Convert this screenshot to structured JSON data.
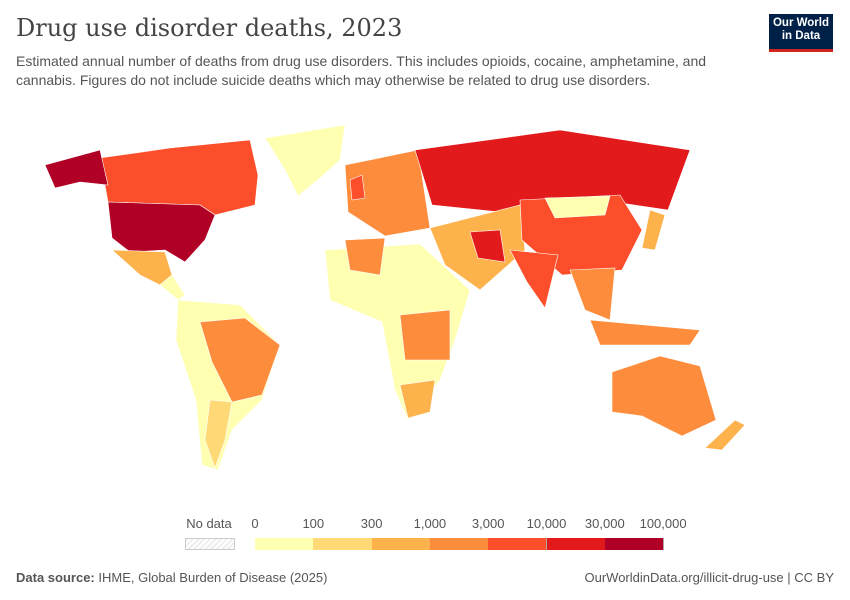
{
  "title": "Drug use disorder deaths, 2023",
  "subtitle": "Estimated annual number of deaths from drug use disorders. This includes opioids, cocaine, amphetamine, and cannabis. Figures do not include suicide deaths which may otherwise be related to drug use disorders.",
  "logo": {
    "line1": "Our World",
    "line2": "in Data"
  },
  "legend": {
    "no_data": "No data",
    "ticks": [
      "0",
      "100",
      "300",
      "1,000",
      "3,000",
      "10,000",
      "30,000",
      "100,000"
    ],
    "colors": [
      "#ffffb2",
      "#fed976",
      "#feb24c",
      "#fd8d3c",
      "#fc4e2a",
      "#e31a1c",
      "#b10026"
    ]
  },
  "footer": {
    "source_label": "Data source:",
    "source": "IHME, Global Burden of Disease (2025)",
    "url": "OurWorldinData.org/illicit-drug-use | CC BY"
  }
}
